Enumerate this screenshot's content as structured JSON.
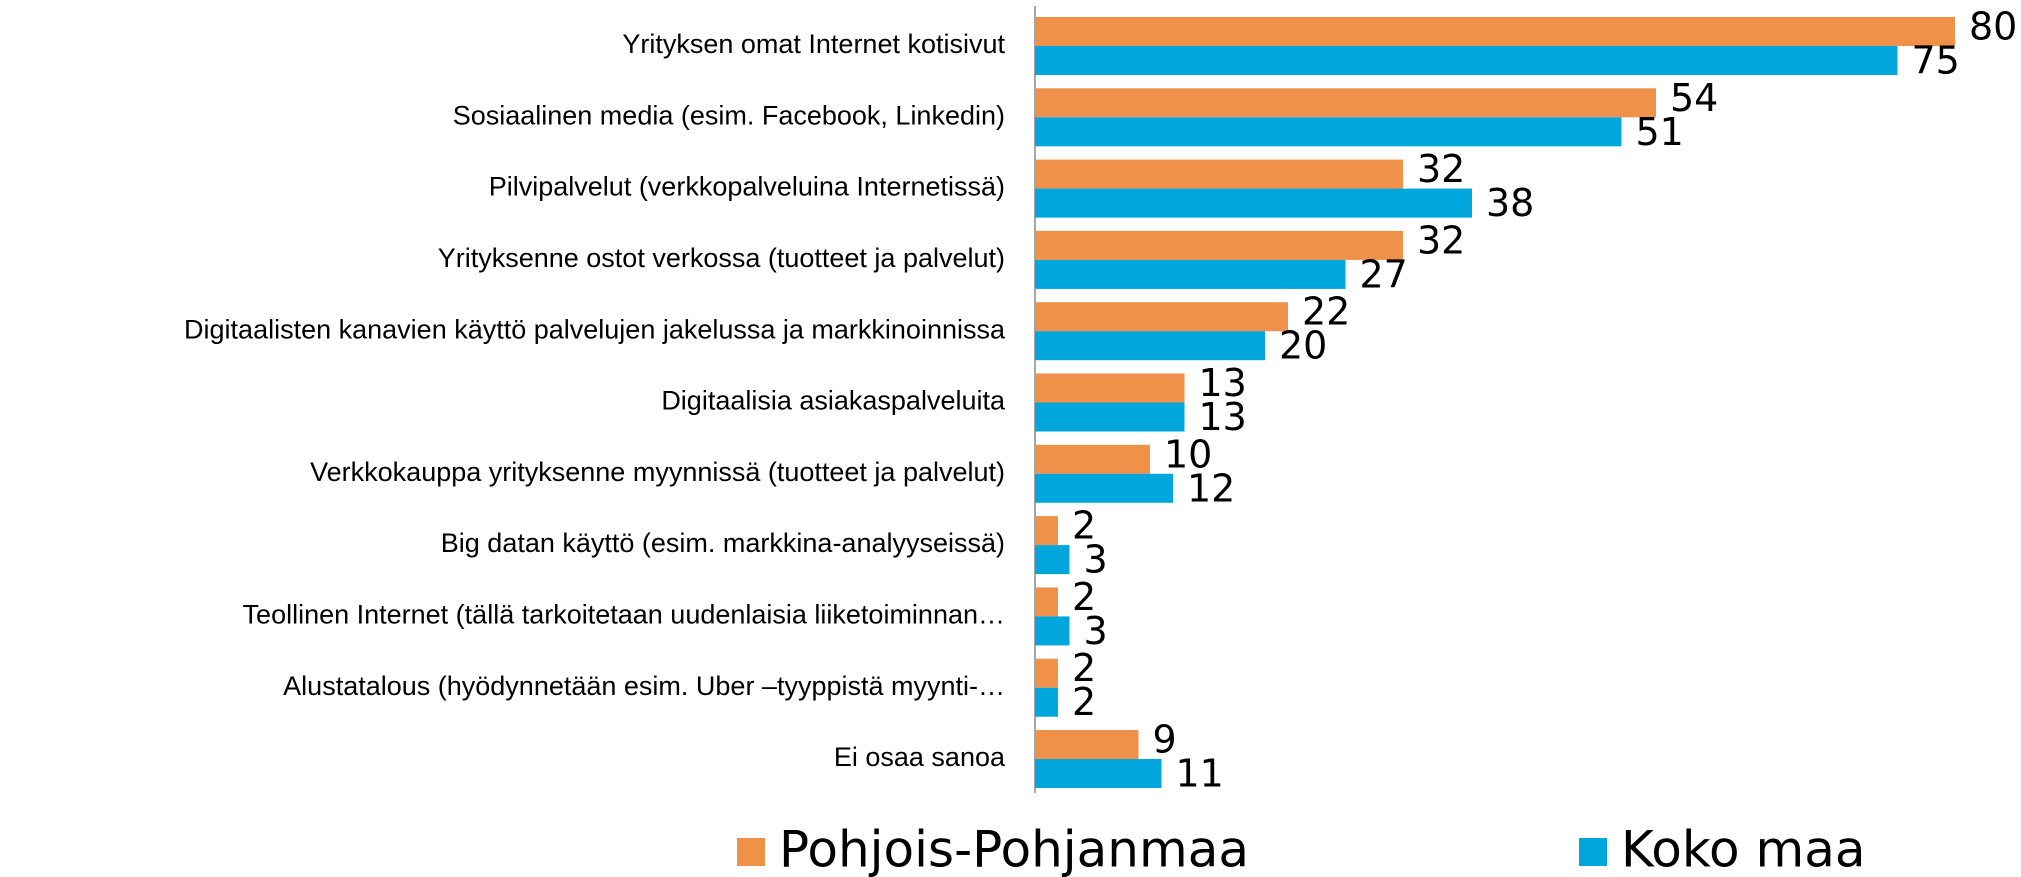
{
  "chart_data": {
    "type": "hbar",
    "categories": [
      "Yrityksen omat Internet kotisivut",
      "Sosiaalinen media (esim. Facebook, Linkedin)",
      "Pilvipalvelut  (verkkopalveluina Internetissä)",
      "Yrityksenne ostot verkossa (tuotteet ja palvelut)",
      "Digitaalisten kanavien käyttö palvelujen jakelussa ja markkinoinnissa",
      "Digitaalisia asiakaspalveluita",
      "Verkkokauppa yrityksenne myynnissä (tuotteet ja palvelut)",
      "Big datan käyttö (esim. markkina-analyyseissä)",
      "Teollinen Internet (tällä tarkoitetaan uudenlaisia liiketoiminnan…",
      "Alustatalous (hyödynnetään esim. Uber –tyyppistä myynti-…",
      "Ei osaa sanoa"
    ],
    "series": [
      {
        "name": "Pohjois-Pohjanmaa",
        "color": "#f0914a",
        "values": [
          80,
          54,
          32,
          32,
          22,
          13,
          10,
          2,
          2,
          2,
          9
        ]
      },
      {
        "name": "Koko maa",
        "color": "#00a6dc",
        "values": [
          75,
          51,
          38,
          27,
          20,
          13,
          12,
          3,
          3,
          2,
          11
        ]
      }
    ]
  }
}
